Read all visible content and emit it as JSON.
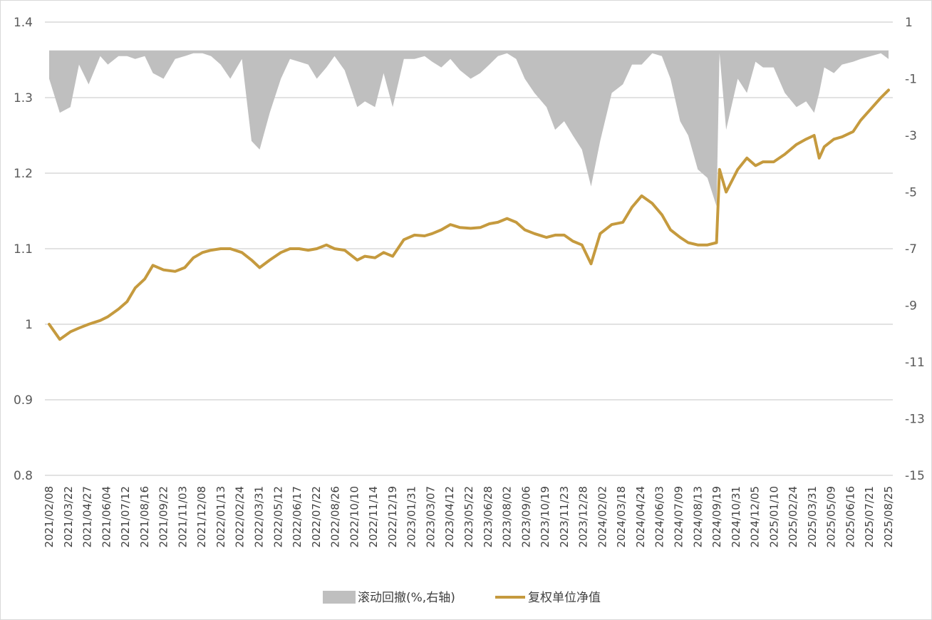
{
  "chart_data": {
    "type": "line",
    "xlabel": "",
    "ylabel": "",
    "y_left": {
      "ylim": [
        0.8,
        1.4
      ],
      "ticks": [
        "0.8",
        "0.9",
        "1",
        "1.1",
        "1.2",
        "1.3",
        "1.4"
      ]
    },
    "y_right": {
      "ylim": [
        -15,
        1
      ],
      "ticks": [
        "-15",
        "-13",
        "-11",
        "-9",
        "-7",
        "-5",
        "-3",
        "-1",
        "1"
      ]
    },
    "x_ticks": [
      "2021/02/08",
      "2021/03/22",
      "2021/04/27",
      "2021/06/04",
      "2021/07/12",
      "2021/08/16",
      "2021/09/22",
      "2021/11/03",
      "2021/12/08",
      "2022/01/13",
      "2022/02/24",
      "2022/03/31",
      "2022/05/12",
      "2022/06/17",
      "2022/07/22",
      "2022/08/26",
      "2022/10/10",
      "2022/11/14",
      "2022/12/19",
      "2023/01/31",
      "2023/03/07",
      "2023/04/12",
      "2023/05/22",
      "2023/06/28",
      "2023/08/02",
      "2023/09/06",
      "2023/10/19",
      "2023/11/23",
      "2023/12/28",
      "2024/02/02",
      "2024/03/18",
      "2024/04/24",
      "2024/06/03",
      "2024/07/09",
      "2024/08/13",
      "2024/09/19",
      "2024/10/31",
      "2024/12/05",
      "2025/01/10",
      "2025/02/24",
      "2025/03/31",
      "2025/05/09",
      "2025/06/16",
      "2025/07/21",
      "2025/08/25"
    ],
    "grid": true,
    "legend_position": "bottom",
    "series": [
      {
        "name": "滚动回撤(%,右轴)",
        "type": "area",
        "axis": "right",
        "color": "#bfbfbf",
        "x": [
          "2021/02/08",
          "2021/03/01",
          "2021/03/22",
          "2021/04/08",
          "2021/04/27",
          "2021/05/20",
          "2021/06/04",
          "2021/06/25",
          "2021/07/12",
          "2021/07/28",
          "2021/08/16",
          "2021/09/01",
          "2021/09/22",
          "2021/10/15",
          "2021/11/03",
          "2021/11/20",
          "2021/12/08",
          "2021/12/25",
          "2022/01/13",
          "2022/02/01",
          "2022/02/24",
          "2022/03/15",
          "2022/03/31",
          "2022/04/20",
          "2022/05/12",
          "2022/05/30",
          "2022/06/17",
          "2022/07/05",
          "2022/07/22",
          "2022/08/10",
          "2022/08/26",
          "2022/09/15",
          "2022/10/10",
          "2022/10/25",
          "2022/11/14",
          "2022/12/01",
          "2022/12/19",
          "2023/01/10",
          "2023/01/31",
          "2023/02/20",
          "2023/03/07",
          "2023/03/25",
          "2023/04/12",
          "2023/05/01",
          "2023/05/22",
          "2023/06/10",
          "2023/06/28",
          "2023/07/15",
          "2023/08/02",
          "2023/08/20",
          "2023/09/06",
          "2023/09/25",
          "2023/10/19",
          "2023/11/05",
          "2023/11/23",
          "2023/12/10",
          "2023/12/28",
          "2024/01/15",
          "2024/02/02",
          "2024/02/25",
          "2024/03/18",
          "2024/04/05",
          "2024/04/24",
          "2024/05/15",
          "2024/06/03",
          "2024/06/20",
          "2024/07/09",
          "2024/07/25",
          "2024/08/13",
          "2024/09/01",
          "2024/09/19",
          "2024/09/25",
          "2024/10/08",
          "2024/10/31",
          "2024/11/18",
          "2024/12/05",
          "2024/12/20",
          "2025/01/10",
          "2025/02/01",
          "2025/02/24",
          "2025/03/15",
          "2025/03/31",
          "2025/04/10",
          "2025/04/20",
          "2025/05/09",
          "2025/05/25",
          "2025/06/16",
          "2025/07/01",
          "2025/07/21",
          "2025/08/10",
          "2025/08/25"
        ],
        "values": [
          -1.0,
          -2.2,
          -2.0,
          -0.5,
          -1.2,
          -0.2,
          -0.5,
          -0.2,
          -0.2,
          -0.3,
          -0.2,
          -0.8,
          -1.0,
          -0.3,
          -0.2,
          -0.1,
          -0.1,
          -0.2,
          -0.5,
          -1.0,
          -0.3,
          -3.2,
          -3.5,
          -2.2,
          -1.0,
          -0.3,
          -0.4,
          -0.5,
          -1.0,
          -0.6,
          -0.2,
          -0.7,
          -2.0,
          -1.8,
          -2.0,
          -0.8,
          -2.0,
          -0.3,
          -0.3,
          -0.2,
          -0.4,
          -0.6,
          -0.3,
          -0.7,
          -1.0,
          -0.8,
          -0.5,
          -0.2,
          -0.1,
          -0.3,
          -1.0,
          -1.5,
          -2.0,
          -2.8,
          -2.5,
          -3.0,
          -3.5,
          -4.8,
          -3.2,
          -1.5,
          -1.2,
          -0.5,
          -0.5,
          -0.1,
          -0.2,
          -1.0,
          -2.5,
          -3.0,
          -4.2,
          -4.5,
          -5.5,
          -0.1,
          -2.8,
          -1.0,
          -1.5,
          -0.4,
          -0.6,
          -0.6,
          -1.5,
          -2.0,
          -1.8,
          -2.2,
          -1.5,
          -0.6,
          -0.8,
          -0.5,
          -0.4,
          -0.3,
          -0.2,
          -0.1,
          -0.3
        ]
      },
      {
        "name": "复权单位净值",
        "type": "line",
        "axis": "left",
        "color": "#c59a3e",
        "x": [
          "2021/02/08",
          "2021/03/01",
          "2021/03/22",
          "2021/04/08",
          "2021/04/27",
          "2021/05/20",
          "2021/06/04",
          "2021/06/25",
          "2021/07/12",
          "2021/07/28",
          "2021/08/16",
          "2021/09/01",
          "2021/09/22",
          "2021/10/15",
          "2021/11/03",
          "2021/11/20",
          "2021/12/08",
          "2021/12/25",
          "2022/01/13",
          "2022/02/01",
          "2022/02/24",
          "2022/03/15",
          "2022/03/31",
          "2022/04/20",
          "2022/05/12",
          "2022/05/30",
          "2022/06/17",
          "2022/07/05",
          "2022/07/22",
          "2022/08/10",
          "2022/08/26",
          "2022/09/15",
          "2022/10/10",
          "2022/10/25",
          "2022/11/14",
          "2022/12/01",
          "2022/12/19",
          "2023/01/10",
          "2023/01/31",
          "2023/02/20",
          "2023/03/07",
          "2023/03/25",
          "2023/04/12",
          "2023/05/01",
          "2023/05/22",
          "2023/06/10",
          "2023/06/28",
          "2023/07/15",
          "2023/08/02",
          "2023/08/20",
          "2023/09/06",
          "2023/09/25",
          "2023/10/19",
          "2023/11/05",
          "2023/11/23",
          "2023/12/10",
          "2023/12/28",
          "2024/01/15",
          "2024/02/02",
          "2024/02/25",
          "2024/03/18",
          "2024/04/05",
          "2024/04/24",
          "2024/05/15",
          "2024/06/03",
          "2024/06/20",
          "2024/07/09",
          "2024/07/25",
          "2024/08/13",
          "2024/09/01",
          "2024/09/19",
          "2024/09/25",
          "2024/10/08",
          "2024/10/31",
          "2024/11/18",
          "2024/12/05",
          "2024/12/20",
          "2025/01/10",
          "2025/02/01",
          "2025/02/24",
          "2025/03/15",
          "2025/03/31",
          "2025/04/10",
          "2025/04/20",
          "2025/05/09",
          "2025/05/25",
          "2025/06/16",
          "2025/07/01",
          "2025/07/21",
          "2025/08/10",
          "2025/08/25"
        ],
        "values": [
          1.0,
          0.98,
          0.99,
          0.995,
          1.0,
          1.005,
          1.01,
          1.02,
          1.03,
          1.048,
          1.06,
          1.078,
          1.072,
          1.07,
          1.075,
          1.088,
          1.095,
          1.098,
          1.1,
          1.1,
          1.095,
          1.085,
          1.075,
          1.085,
          1.095,
          1.1,
          1.1,
          1.098,
          1.1,
          1.105,
          1.1,
          1.098,
          1.085,
          1.09,
          1.088,
          1.095,
          1.09,
          1.112,
          1.118,
          1.117,
          1.12,
          1.125,
          1.132,
          1.128,
          1.127,
          1.128,
          1.133,
          1.135,
          1.14,
          1.135,
          1.125,
          1.12,
          1.115,
          1.118,
          1.118,
          1.11,
          1.105,
          1.08,
          1.12,
          1.132,
          1.135,
          1.155,
          1.17,
          1.16,
          1.145,
          1.125,
          1.115,
          1.108,
          1.105,
          1.105,
          1.108,
          1.205,
          1.175,
          1.205,
          1.22,
          1.21,
          1.215,
          1.215,
          1.225,
          1.238,
          1.245,
          1.25,
          1.22,
          1.235,
          1.245,
          1.248,
          1.255,
          1.27,
          1.285,
          1.3,
          1.31
        ]
      }
    ]
  }
}
